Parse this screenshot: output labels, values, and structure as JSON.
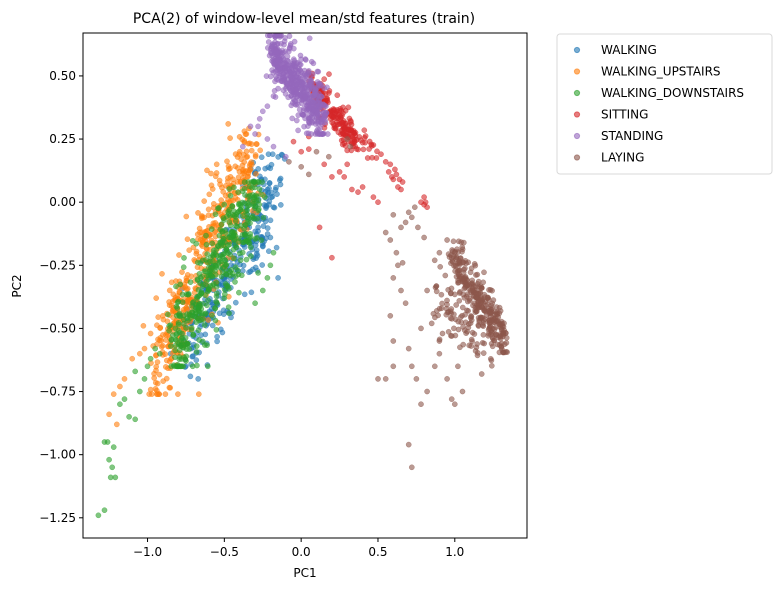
{
  "chart_data": {
    "type": "scatter",
    "title": "PCA(2) of window-level mean/std features (train)",
    "xlabel": "PC1",
    "ylabel": "PC2",
    "xlim": [
      -1.42,
      1.47
    ],
    "ylim": [
      -1.33,
      0.67
    ],
    "xticks": [
      -1.0,
      -0.5,
      0.0,
      0.5,
      1.0
    ],
    "xtick_labels": [
      "−1.0",
      "−0.5",
      "0.0",
      "0.5",
      "1.0"
    ],
    "yticks": [
      -1.25,
      -1.0,
      -0.75,
      -0.5,
      -0.25,
      0.0,
      0.25,
      0.5
    ],
    "ytick_labels": [
      "−1.25",
      "−1.00",
      "−0.75",
      "−0.50",
      "−0.25",
      "0.00",
      "0.25",
      "0.50"
    ],
    "grid": false,
    "legend_placement": "outside upper right",
    "series": [
      {
        "name": "WALKING",
        "color": "#1f77b4",
        "clusters": [
          {
            "count": 260,
            "x": [
              -0.75,
              -0.2
            ],
            "y": [
              -0.6,
              0.1
            ],
            "slope": 1.15,
            "spread": 0.09
          },
          {
            "count": 40,
            "x": [
              -0.35,
              -0.12
            ],
            "y": [
              -0.35,
              0.15
            ],
            "slope": 2.0,
            "spread": 0.05
          }
        ],
        "points": [
          [
            -0.28,
            0.07
          ],
          [
            -0.22,
            0.05
          ],
          [
            -0.3,
            0.12
          ],
          [
            -0.18,
            -0.02
          ],
          [
            -0.2,
            -0.14
          ],
          [
            -0.16,
            -0.18
          ],
          [
            -0.15,
            -0.3
          ],
          [
            -0.27,
            -0.05
          ],
          [
            -0.85,
            -0.6
          ],
          [
            -0.75,
            -0.65
          ],
          [
            -0.67,
            -0.7
          ]
        ]
      },
      {
        "name": "WALKING_UPSTAIRS",
        "color": "#ff7f0e",
        "clusters": [
          {
            "count": 450,
            "x": [
              -0.95,
              -0.3
            ],
            "y": [
              -0.65,
              0.2
            ],
            "slope": 1.3,
            "spread": 0.11
          }
        ],
        "points": [
          [
            -0.4,
            0.2
          ],
          [
            -0.35,
            0.18
          ],
          [
            -0.55,
            0.15
          ],
          [
            -0.98,
            -0.52
          ],
          [
            -1.02,
            -0.58
          ],
          [
            -1.1,
            -0.62
          ],
          [
            -1.15,
            -0.7
          ],
          [
            -1.18,
            -0.73
          ],
          [
            -1.22,
            -0.76
          ],
          [
            -1.25,
            -0.84
          ],
          [
            -1.2,
            -0.88
          ],
          [
            -1.05,
            -0.6
          ],
          [
            -0.9,
            -0.45
          ]
        ]
      },
      {
        "name": "WALKING_DOWNSTAIRS",
        "color": "#2ca02c",
        "clusters": [
          {
            "count": 420,
            "x": [
              -0.85,
              -0.28
            ],
            "y": [
              -0.55,
              -0.02
            ],
            "slope": 1.1,
            "spread": 0.1
          }
        ],
        "points": [
          [
            -1.32,
            -1.24
          ],
          [
            -1.28,
            -1.22
          ],
          [
            -1.24,
            -1.09
          ],
          [
            -1.21,
            -1.09
          ],
          [
            -1.23,
            -1.05
          ],
          [
            -1.25,
            -1.02
          ],
          [
            -1.22,
            -0.97
          ],
          [
            -1.28,
            -0.95
          ],
          [
            -1.26,
            -0.95
          ],
          [
            -1.12,
            -0.85
          ],
          [
            -1.08,
            -0.86
          ],
          [
            -1.18,
            -0.8
          ],
          [
            -1.15,
            -0.78
          ],
          [
            -1.05,
            -0.75
          ],
          [
            -1.02,
            -0.7
          ],
          [
            -1.08,
            -0.67
          ],
          [
            -1.0,
            -0.65
          ],
          [
            -0.98,
            -0.62
          ],
          [
            -0.95,
            -0.58
          ],
          [
            -0.92,
            -0.6
          ],
          [
            -0.78,
            -0.55
          ],
          [
            -0.74,
            -0.56
          ],
          [
            -0.68,
            -0.57
          ],
          [
            -0.58,
            -0.45
          ],
          [
            -0.3,
            -0.4
          ],
          [
            -0.25,
            -0.35
          ],
          [
            -0.2,
            -0.25
          ],
          [
            -0.18,
            -0.2
          ],
          [
            -0.22,
            -0.3
          ],
          [
            -0.28,
            -0.28
          ]
        ]
      },
      {
        "name": "SITTING",
        "color": "#d62728",
        "clusters": [
          {
            "count": 170,
            "x": [
              0.05,
              0.35
            ],
            "y": [
              0.24,
              0.48
            ],
            "slope": -0.75,
            "spread": 0.035
          },
          {
            "count": 40,
            "x": [
              0.25,
              0.5
            ],
            "y": [
              0.2,
              0.3
            ],
            "slope": -0.45,
            "spread": 0.025
          }
        ],
        "points": [
          [
            0.52,
            0.19
          ],
          [
            0.55,
            0.16
          ],
          [
            0.58,
            0.15
          ],
          [
            0.59,
            0.1
          ],
          [
            0.6,
            0.09
          ],
          [
            0.61,
            0.13
          ],
          [
            0.62,
            0.11
          ],
          [
            0.64,
            0.09
          ],
          [
            0.65,
            0.05
          ],
          [
            0.66,
            0.08
          ],
          [
            0.63,
            0.06
          ],
          [
            0.57,
            0.12
          ],
          [
            0.8,
            -0.01
          ],
          [
            0.81,
            0.0
          ],
          [
            0.82,
            -0.02
          ],
          [
            0.8,
            0.02
          ],
          [
            0.78,
            0.0
          ],
          [
            0.47,
            0.02
          ],
          [
            0.5,
            0.0
          ],
          [
            0.4,
            0.06
          ],
          [
            0.33,
            0.05
          ],
          [
            0.28,
            0.1
          ],
          [
            0.25,
            0.12
          ],
          [
            0.2,
            0.1
          ],
          [
            0.05,
            0.26
          ],
          [
            -0.05,
            0.24
          ],
          [
            0.15,
            0.15
          ],
          [
            0.3,
            0.15
          ],
          [
            0.12,
            -0.1
          ],
          [
            0.2,
            -0.22
          ],
          [
            0.05,
            0.21
          ],
          [
            0.0,
            0.2
          ],
          [
            0.37,
            0.04
          ]
        ]
      },
      {
        "name": "STANDING",
        "color": "#9467bd",
        "clusters": [
          {
            "count": 500,
            "x": [
              -0.2,
              0.15
            ],
            "y": [
              0.33,
              0.6
            ],
            "slope": -0.7,
            "spread": 0.06
          }
        ],
        "points": [
          [
            -0.15,
            0.45
          ],
          [
            -0.18,
            0.42
          ],
          [
            -0.22,
            0.38
          ],
          [
            -0.25,
            0.36
          ],
          [
            -0.27,
            0.33
          ],
          [
            -0.33,
            0.3
          ],
          [
            -0.28,
            0.3
          ],
          [
            -0.3,
            0.27
          ],
          [
            -0.38,
            0.22
          ],
          [
            -0.22,
            0.25
          ],
          [
            -0.18,
            0.22
          ],
          [
            -0.1,
            0.18
          ],
          [
            0.08,
            0.55
          ],
          [
            0.05,
            0.52
          ],
          [
            0.12,
            0.47
          ]
        ]
      },
      {
        "name": "LAYING",
        "color": "#8c564b",
        "clusters": [
          {
            "count": 280,
            "x": [
              0.97,
              1.33
            ],
            "y": [
              -0.55,
              -0.2
            ],
            "slope": -0.95,
            "spread": 0.045
          },
          {
            "count": 100,
            "x": [
              0.88,
              1.25
            ],
            "y": [
              -0.65,
              -0.3
            ],
            "slope": -0.6,
            "spread": 0.07
          }
        ],
        "points": [
          [
            0.3,
            0.25
          ],
          [
            0.32,
            0.22
          ],
          [
            0.1,
            0.2
          ],
          [
            0.18,
            0.18
          ],
          [
            0.0,
            0.14
          ],
          [
            0.05,
            0.11
          ],
          [
            -0.08,
            0.16
          ],
          [
            0.7,
            -0.04
          ],
          [
            0.72,
            -0.06
          ],
          [
            0.68,
            -0.08
          ],
          [
            0.65,
            -0.1
          ],
          [
            0.6,
            -0.05
          ],
          [
            0.74,
            -0.02
          ],
          [
            0.76,
            -0.1
          ],
          [
            0.8,
            -0.14
          ],
          [
            0.58,
            -0.15
          ],
          [
            0.55,
            -0.12
          ],
          [
            0.62,
            -0.2
          ],
          [
            0.66,
            -0.24
          ],
          [
            0.6,
            -0.3
          ],
          [
            0.65,
            -0.35
          ],
          [
            0.68,
            -0.4
          ],
          [
            0.58,
            -0.45
          ],
          [
            0.6,
            -0.55
          ],
          [
            0.7,
            -0.58
          ],
          [
            0.72,
            -0.65
          ],
          [
            0.55,
            -0.7
          ],
          [
            0.75,
            -0.7
          ],
          [
            0.78,
            -0.5
          ],
          [
            0.85,
            -0.48
          ],
          [
            0.82,
            -0.35
          ],
          [
            0.9,
            -0.2
          ],
          [
            0.95,
            -0.15
          ],
          [
            1.0,
            -0.2
          ],
          [
            0.9,
            -0.6
          ],
          [
            0.95,
            -0.7
          ],
          [
            1.0,
            -0.8
          ],
          [
            0.98,
            -0.78
          ],
          [
            1.05,
            -0.75
          ],
          [
            1.02,
            -0.65
          ],
          [
            0.9,
            -0.55
          ],
          [
            0.87,
            -0.65
          ],
          [
            0.92,
            -0.52
          ],
          [
            0.7,
            -0.96
          ],
          [
            0.72,
            -1.05
          ],
          [
            0.78,
            -0.8
          ],
          [
            0.82,
            -0.75
          ],
          [
            0.6,
            -0.65
          ],
          [
            0.5,
            -0.7
          ],
          [
            0.63,
            -0.25
          ]
        ]
      }
    ]
  }
}
